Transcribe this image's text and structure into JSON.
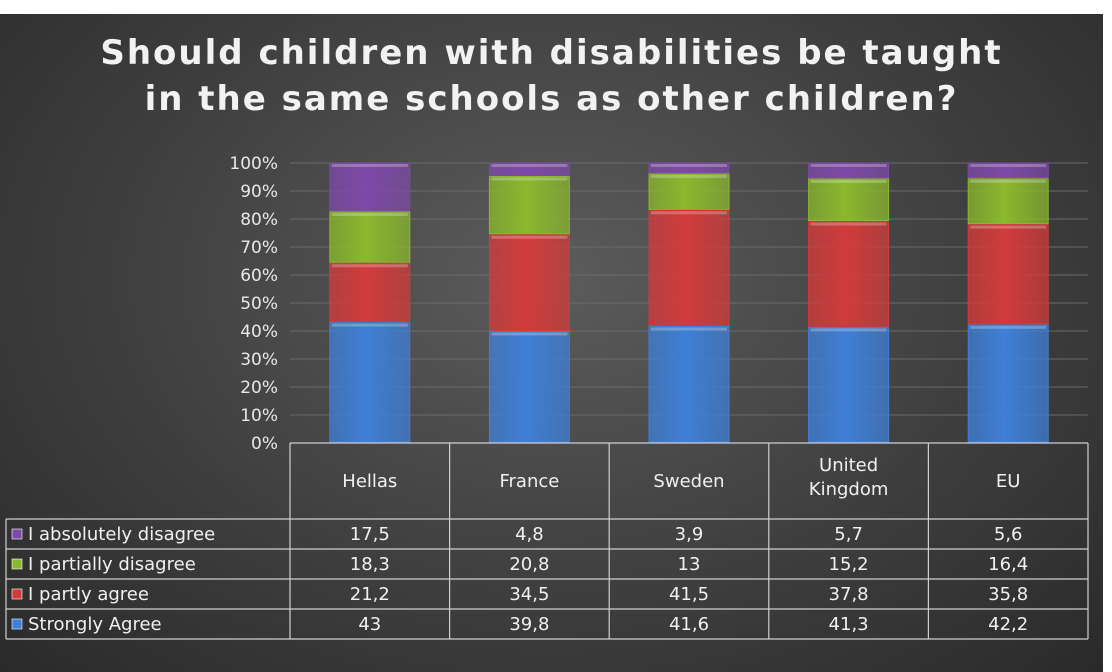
{
  "chart_data": {
    "type": "bar",
    "stacked": true,
    "percent_stacked": true,
    "title_lines": [
      "Should children with disabilities be taught",
      "in the same schools as other children?"
    ],
    "categories": [
      "Hellas",
      "France",
      "Sweden",
      "United Kingdom",
      "EU"
    ],
    "y_ticks": [
      "0%",
      "10%",
      "20%",
      "30%",
      "40%",
      "50%",
      "60%",
      "70%",
      "80%",
      "90%",
      "100%"
    ],
    "ylim": [
      0,
      100
    ],
    "grid": true,
    "legend": "data-table",
    "series": [
      {
        "name": "Strongly Agree",
        "color": "#3f7fd6",
        "values": [
          "43",
          "39,8",
          "41,6",
          "41,3",
          "42,2"
        ],
        "numeric": [
          43,
          39.8,
          41.6,
          41.3,
          42.2
        ]
      },
      {
        "name": "I partly agree",
        "color": "#d23b3b",
        "values": [
          "21,2",
          "34,5",
          "41,5",
          "37,8",
          "35,8"
        ],
        "numeric": [
          21.2,
          34.5,
          41.5,
          37.8,
          35.8
        ]
      },
      {
        "name": "I partially disagree",
        "color": "#8ab82d",
        "values": [
          "18,3",
          "20,8",
          "13",
          "15,2",
          "16,4"
        ],
        "numeric": [
          18.3,
          20.8,
          13,
          15.2,
          16.4
        ]
      },
      {
        "name": "I absolutely disagree",
        "color": "#7d4aa8",
        "values": [
          "17,5",
          "4,8",
          "3,9",
          "5,7",
          "5,6"
        ],
        "numeric": [
          17.5,
          4.8,
          3.9,
          5.7,
          5.6
        ]
      }
    ]
  }
}
